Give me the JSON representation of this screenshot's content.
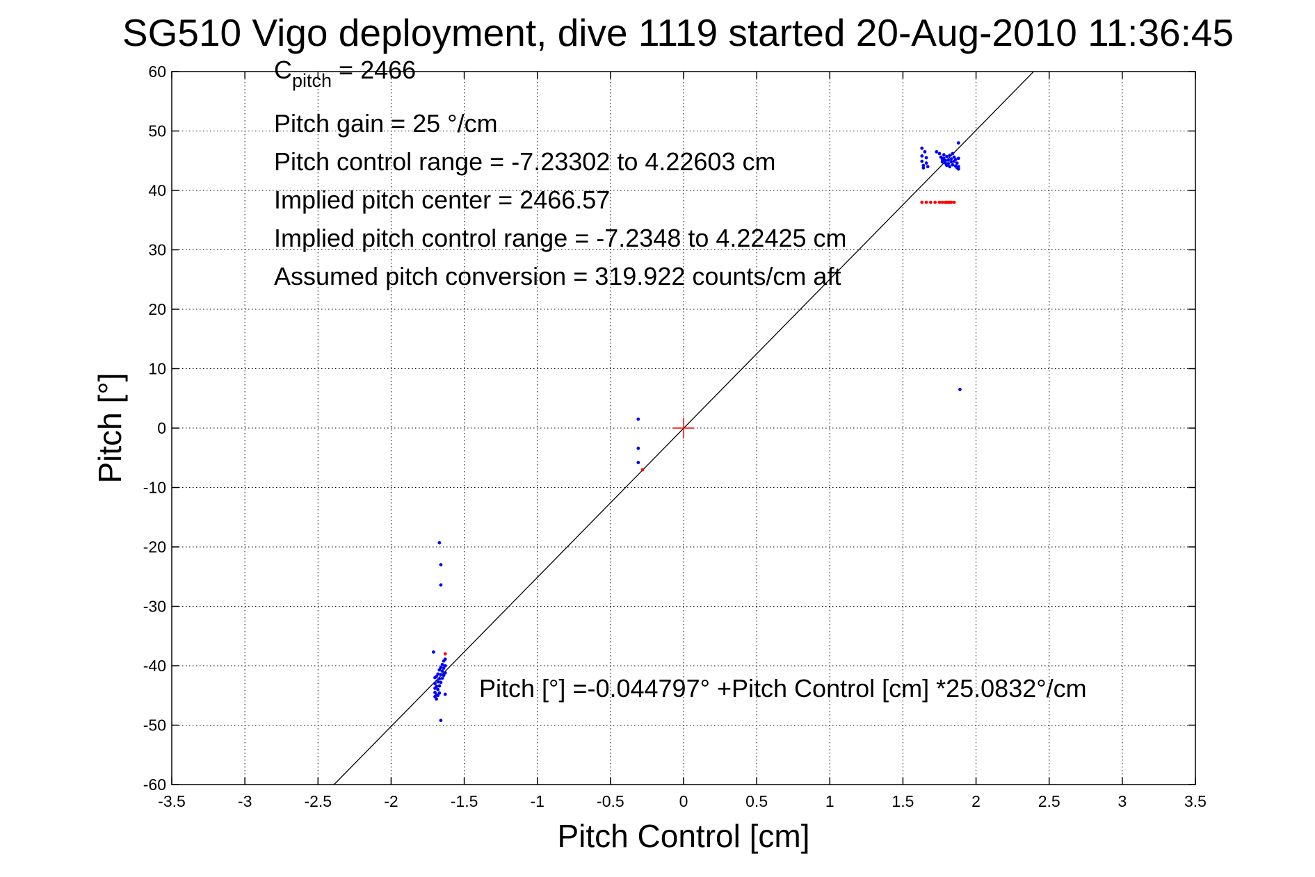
{
  "chart_data": {
    "type": "scatter",
    "title": "SG510 Vigo deployment, dive 1119 started 20-Aug-2010 11:36:45",
    "xlabel": "Pitch Control [cm]",
    "ylabel": "Pitch [°]",
    "xlim": [
      -3.5,
      3.5
    ],
    "ylim": [
      -60,
      60
    ],
    "xticks": [
      "-3.5",
      "-3",
      "-2.5",
      "-2",
      "-1.5",
      "-1",
      "-0.5",
      "0",
      "0.5",
      "1",
      "1.5",
      "2",
      "2.5",
      "3",
      "3.5"
    ],
    "yticks": [
      "60",
      "50",
      "40",
      "30",
      "20",
      "10",
      "0",
      "-10",
      "-20",
      "-30",
      "-40",
      "-50",
      "-60"
    ],
    "grid": true,
    "annotations": {
      "c_pitch_main": "C",
      "c_pitch_sub": "pitch",
      "c_pitch_rest": " = 2466",
      "pitch_gain": "Pitch gain = 25 °/cm",
      "control_range": "Pitch control range = -7.23302 to 4.22603 cm",
      "implied_center": "Implied pitch center = 2466.57",
      "implied_range": "Implied pitch control range = -7.2348 to 4.22425 cm",
      "conversion": "Assumed pitch conversion = 319.922 counts/cm aft",
      "fit_equation": "Pitch [°] =-0.044797° +Pitch Control [cm] *25.0832°/cm"
    },
    "fit_line": {
      "intercept": -0.044797,
      "slope": 25.0832,
      "color": "#000000"
    },
    "center_marker": {
      "x": 0,
      "y": 0,
      "color": "#ff0000"
    },
    "series": [
      {
        "color": "#0000ff",
        "points": [
          [
            -1.71,
            -37.7
          ],
          [
            -1.7,
            -42.0
          ],
          [
            -1.7,
            -43.0
          ],
          [
            -1.7,
            -43.8
          ],
          [
            -1.7,
            -44.5
          ],
          [
            -1.7,
            -45.2
          ],
          [
            -1.69,
            -41.8
          ],
          [
            -1.69,
            -43.5
          ],
          [
            -1.69,
            -44.9
          ],
          [
            -1.69,
            -45.6
          ],
          [
            -1.68,
            -41.4
          ],
          [
            -1.68,
            -42.7
          ],
          [
            -1.68,
            -44.0
          ],
          [
            -1.68,
            -45.0
          ],
          [
            -1.67,
            -40.7
          ],
          [
            -1.67,
            -42.2
          ],
          [
            -1.67,
            -43.4
          ],
          [
            -1.67,
            -44.6
          ],
          [
            -1.66,
            -40.3
          ],
          [
            -1.66,
            -41.5
          ],
          [
            -1.66,
            -42.8
          ],
          [
            -1.65,
            -39.8
          ],
          [
            -1.65,
            -40.9
          ],
          [
            -1.65,
            -42.1
          ],
          [
            -1.64,
            -39.2
          ],
          [
            -1.64,
            -40.4
          ],
          [
            -1.64,
            -41.6
          ],
          [
            -1.63,
            -38.9
          ],
          [
            -1.63,
            -40.0
          ],
          [
            -1.63,
            -41.2
          ],
          [
            -1.63,
            -44.8
          ],
          [
            -1.66,
            -49.2
          ],
          [
            -1.67,
            -19.3
          ],
          [
            -1.66,
            -23.0
          ],
          [
            -1.66,
            -26.4
          ],
          [
            -0.31,
            1.5
          ],
          [
            -0.31,
            -3.4
          ],
          [
            -0.31,
            -5.8
          ],
          [
            1.63,
            47.1
          ],
          [
            1.63,
            45.8
          ],
          [
            1.63,
            44.9
          ],
          [
            1.64,
            44.2
          ],
          [
            1.64,
            43.8
          ],
          [
            1.65,
            46.5
          ],
          [
            1.66,
            44.6
          ],
          [
            1.66,
            45.5
          ],
          [
            1.67,
            44.0
          ],
          [
            1.73,
            46.5
          ],
          [
            1.75,
            46.2
          ],
          [
            1.76,
            45.6
          ],
          [
            1.77,
            45.2
          ],
          [
            1.77,
            44.8
          ],
          [
            1.78,
            46.0
          ],
          [
            1.78,
            45.4
          ],
          [
            1.79,
            45.0
          ],
          [
            1.79,
            44.6
          ],
          [
            1.8,
            44.2
          ],
          [
            1.8,
            45.7
          ],
          [
            1.81,
            45.1
          ],
          [
            1.81,
            44.5
          ],
          [
            1.82,
            44.0
          ],
          [
            1.82,
            45.9
          ],
          [
            1.83,
            45.3
          ],
          [
            1.83,
            44.8
          ],
          [
            1.84,
            44.3
          ],
          [
            1.84,
            46.2
          ],
          [
            1.85,
            45.6
          ],
          [
            1.85,
            44.9
          ],
          [
            1.86,
            44.1
          ],
          [
            1.86,
            45.2
          ],
          [
            1.87,
            43.8
          ],
          [
            1.87,
            44.6
          ],
          [
            1.88,
            45.4
          ],
          [
            1.88,
            44.0
          ],
          [
            1.88,
            43.6
          ],
          [
            1.88,
            48.0
          ],
          [
            1.89,
            6.5
          ]
        ]
      },
      {
        "color": "#ff0000",
        "points": [
          [
            1.63,
            38.0
          ],
          [
            1.66,
            38.0
          ],
          [
            1.69,
            38.0
          ],
          [
            1.72,
            38.0
          ],
          [
            1.75,
            38.0
          ],
          [
            1.77,
            38.0
          ],
          [
            1.79,
            38.0
          ],
          [
            1.8,
            38.0
          ],
          [
            1.81,
            38.0
          ],
          [
            1.82,
            38.0
          ],
          [
            1.83,
            38.0
          ],
          [
            1.85,
            38.0
          ],
          [
            -1.63,
            -38.0
          ],
          [
            -0.28,
            -7.0
          ]
        ]
      }
    ]
  }
}
